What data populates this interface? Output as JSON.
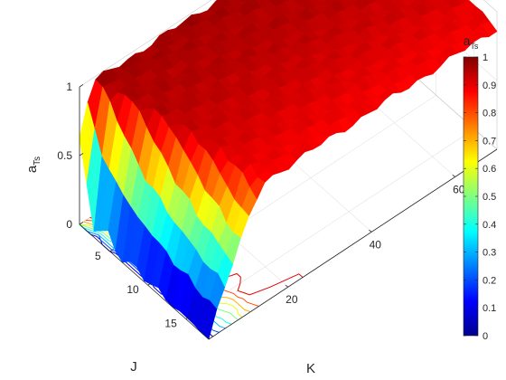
{
  "chart_data": {
    "type": "surface",
    "title": "",
    "xlabel": "K",
    "ylabel": "J",
    "zlabel_main": "a",
    "zlabel_sub": "Ts",
    "xlim": [
      1,
      70
    ],
    "ylim": [
      1,
      18
    ],
    "zlim": [
      0,
      1
    ],
    "x_ticks": [
      "20",
      "40",
      "60"
    ],
    "y_ticks": [
      "5",
      "10",
      "15"
    ],
    "z_ticks": [
      "0",
      "0.5",
      "1"
    ],
    "colormap": "jet",
    "grid": true,
    "colorbar": {
      "label_main": "a",
      "label_sub": "Ts",
      "range": [
        0,
        1
      ],
      "ticks": [
        "0",
        "0.1",
        "0.2",
        "0.3",
        "0.4",
        "0.5",
        "0.6",
        "0.7",
        "0.8",
        "0.9",
        "1"
      ]
    },
    "contour_levels": [
      0.1,
      0.2,
      0.3,
      0.4,
      0.5,
      0.6,
      0.7,
      0.8,
      0.9
    ],
    "surface_profile": [
      {
        "J": 1,
        "a_at_K1": 0.62,
        "plateau": 0.97
      },
      {
        "J": 2,
        "a_at_K1": 0.35,
        "plateau": 0.96
      },
      {
        "J": 3,
        "a_at_K1": 0.0,
        "plateau": 0.96
      },
      {
        "J": 4,
        "a_at_K1": 0.1,
        "plateau": 0.95
      },
      {
        "J": 5,
        "a_at_K1": 0.15,
        "plateau": 0.95
      },
      {
        "J": 6,
        "a_at_K1": 0.0,
        "plateau": 0.95
      },
      {
        "J": 8,
        "a_at_K1": 0.05,
        "plateau": 0.94
      },
      {
        "J": 10,
        "a_at_K1": 0.03,
        "plateau": 0.93
      },
      {
        "J": 12,
        "a_at_K1": 0.02,
        "plateau": 0.92
      },
      {
        "J": 15,
        "a_at_K1": 0.01,
        "plateau": 0.9
      },
      {
        "J": 18,
        "a_at_K1": 0.0,
        "plateau": 0.88
      }
    ]
  }
}
